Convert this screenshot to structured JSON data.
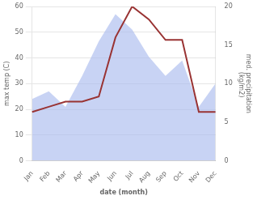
{
  "chart_data": {
    "type": "line",
    "categories": [
      "Jan",
      "Feb",
      "Mar",
      "Apr",
      "May",
      "Jun",
      "Jul",
      "Aug",
      "Sep",
      "Oct",
      "Nov",
      "Dec"
    ],
    "series": [
      {
        "values": [
          19,
          21,
          23,
          23,
          25,
          48,
          60,
          55,
          47,
          47,
          19,
          19
        ],
        "color": "#993333"
      },
      {
        "values": [
          8,
          9,
          7,
          11,
          15.5,
          19,
          17,
          13.5,
          11,
          13,
          7,
          10
        ],
        "color": "#aabbee",
        "axis": "y2",
        "type": "area"
      }
    ],
    "x_label": "date (month)",
    "y_label": "max temp (C)",
    "y2_label": "med. precipitation\n (kg/m2)",
    "ylim": [
      0,
      60
    ],
    "yticks": [
      0,
      10,
      20,
      30,
      40,
      50,
      60
    ],
    "y2lim": [
      0,
      20
    ],
    "y2ticks": [
      0,
      5,
      10,
      15,
      20
    ],
    "grid": true
  }
}
